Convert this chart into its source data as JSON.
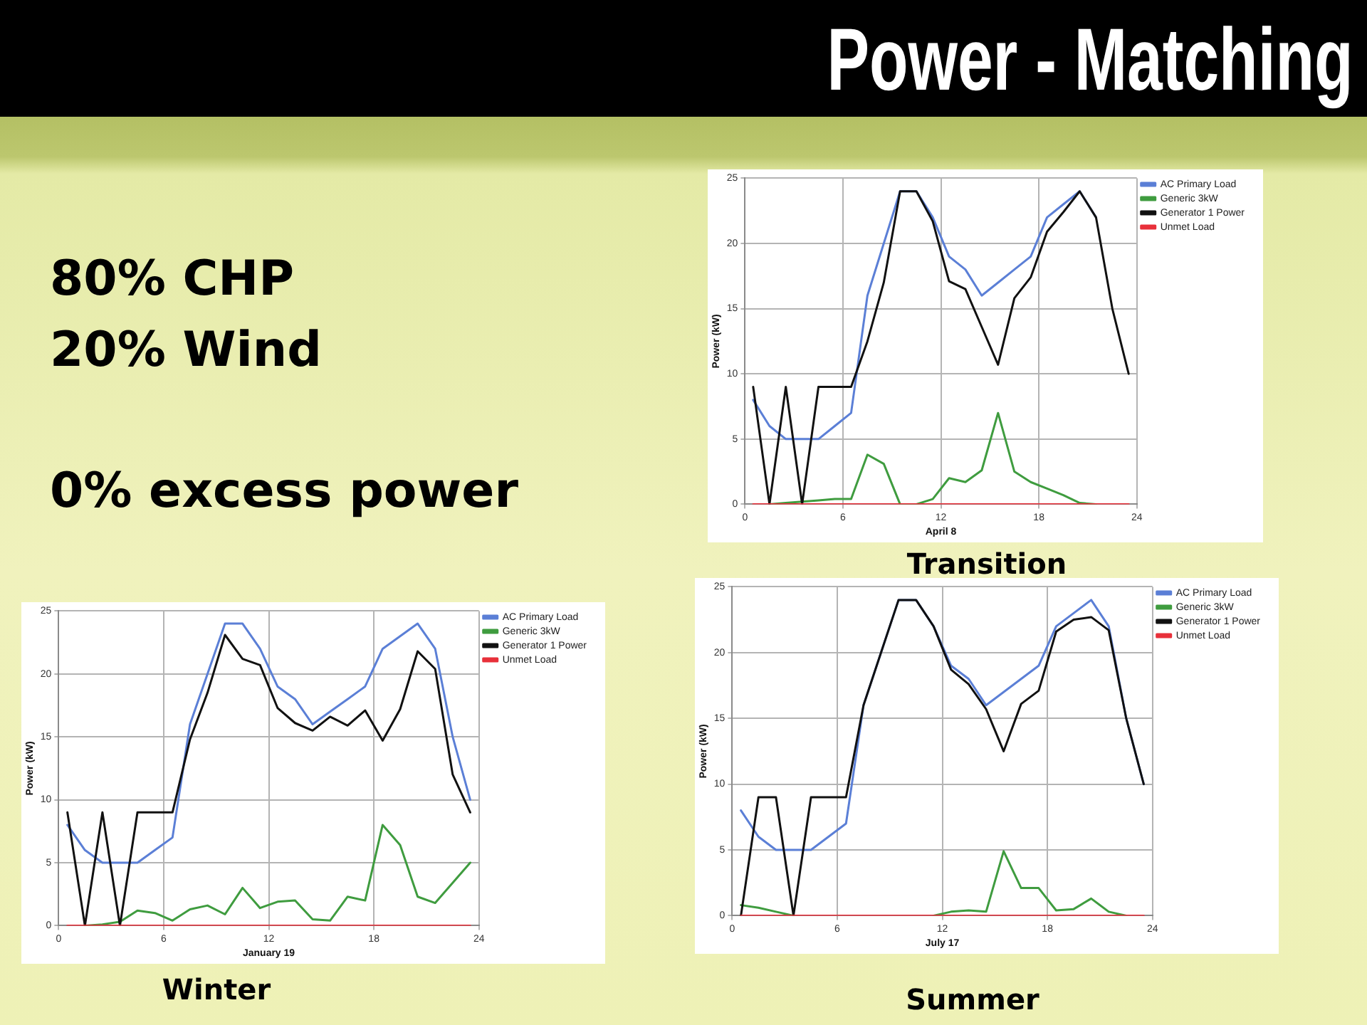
{
  "chart_data": [
    {
      "type": "other",
      "title": "Power - Matching",
      "annotations": [
        "80% CHP",
        "20% Wind",
        "0% excess power"
      ]
    },
    {
      "type": "line",
      "title": "Transition",
      "xlabel": "April 8",
      "ylabel": "Power (kW)",
      "x": [
        0.5,
        1.5,
        2.5,
        3.5,
        4.5,
        5.5,
        6.5,
        7.5,
        8.5,
        9.5,
        10.5,
        11.5,
        12.5,
        13.5,
        14.5,
        15.5,
        16.5,
        17.5,
        18.5,
        19.5,
        20.5,
        21.5,
        22.5,
        23.5
      ],
      "xlim": [
        0,
        24
      ],
      "xticks": [
        0,
        6,
        12,
        18,
        24
      ],
      "ylim": [
        0,
        25
      ],
      "yticks": [
        0,
        5,
        10,
        15,
        20,
        25
      ],
      "grid": true,
      "legend": "top right",
      "series": [
        {
          "name": "AC Primary Load",
          "color": "#5b7fd6",
          "values": [
            8,
            6,
            5,
            5,
            5,
            6,
            7,
            16,
            20,
            24,
            24,
            22,
            19,
            18,
            16,
            17,
            18,
            19,
            22,
            23,
            24,
            22,
            null,
            null
          ]
        },
        {
          "name": "Generic 3kW",
          "color": "#3f9c3f",
          "values": [
            null,
            0,
            0.1,
            0.2,
            0.3,
            0.4,
            0.4,
            3.8,
            3.1,
            0,
            0,
            0.4,
            2,
            1.7,
            2.6,
            7,
            2.5,
            1.7,
            1.2,
            0.7,
            0.1,
            0,
            null,
            null
          ]
        },
        {
          "name": "Generator 1 Power",
          "color": "#111111",
          "values": [
            9,
            0,
            9,
            0,
            9,
            9,
            9,
            12.5,
            17,
            24,
            24,
            21.7,
            17.1,
            16.5,
            13.6,
            10.7,
            15.8,
            17.4,
            20.9,
            22.4,
            24,
            22,
            15,
            10
          ]
        },
        {
          "name": "Unmet Load",
          "color": "#e8303a",
          "values": [
            0,
            0,
            0,
            0,
            0,
            0,
            0,
            0,
            0,
            0,
            0,
            0,
            0,
            0,
            0,
            0,
            0,
            0,
            0,
            0,
            0,
            0,
            0,
            0
          ]
        }
      ]
    },
    {
      "type": "line",
      "title": "Winter",
      "xlabel": "January 19",
      "ylabel": "Power (kW)",
      "x": [
        0.5,
        1.5,
        2.5,
        3.5,
        4.5,
        5.5,
        6.5,
        7.5,
        8.5,
        9.5,
        10.5,
        11.5,
        12.5,
        13.5,
        14.5,
        15.5,
        16.5,
        17.5,
        18.5,
        19.5,
        20.5,
        21.5,
        22.5,
        23.5
      ],
      "xlim": [
        0,
        24
      ],
      "xticks": [
        0,
        6,
        12,
        18,
        24
      ],
      "ylim": [
        0,
        25
      ],
      "yticks": [
        0,
        5,
        10,
        15,
        20,
        25
      ],
      "grid": true,
      "legend": "top right",
      "series": [
        {
          "name": "AC Primary Load",
          "color": "#5b7fd6",
          "values": [
            8,
            6,
            5,
            5,
            5,
            6,
            7,
            16,
            20,
            24,
            24,
            22,
            19,
            18,
            16,
            17,
            18,
            19,
            22,
            23,
            24,
            22,
            15,
            10
          ]
        },
        {
          "name": "Generic 3kW",
          "color": "#3f9c3f",
          "values": [
            null,
            0,
            0.1,
            0.3,
            1.2,
            1,
            0.4,
            1.3,
            1.6,
            0.9,
            3,
            1.4,
            1.9,
            2,
            0.5,
            0.4,
            2.3,
            2,
            8,
            6.4,
            2.3,
            1.8,
            3.4,
            5
          ]
        },
        {
          "name": "Generator 1 Power",
          "color": "#111111",
          "values": [
            9,
            0,
            9,
            0,
            9,
            9,
            9,
            14.8,
            18.5,
            23.1,
            21.2,
            20.7,
            17.3,
            16.1,
            15.5,
            16.6,
            15.9,
            17.1,
            14.7,
            17.2,
            21.8,
            20.4,
            12,
            9
          ]
        },
        {
          "name": "Unmet Load",
          "color": "#e8303a",
          "values": [
            0,
            0,
            0,
            0,
            0,
            0,
            0,
            0,
            0,
            0,
            0,
            0,
            0,
            0,
            0,
            0,
            0,
            0,
            0,
            0,
            0,
            0,
            0,
            0
          ]
        }
      ]
    },
    {
      "type": "line",
      "title": "Summer",
      "xlabel": "July 17",
      "ylabel": "Power (kW)",
      "x": [
        0.5,
        1.5,
        2.5,
        3.5,
        4.5,
        5.5,
        6.5,
        7.5,
        8.5,
        9.5,
        10.5,
        11.5,
        12.5,
        13.5,
        14.5,
        15.5,
        16.5,
        17.5,
        18.5,
        19.5,
        20.5,
        21.5,
        22.5,
        23.5
      ],
      "xlim": [
        0,
        24
      ],
      "xticks": [
        0,
        6,
        12,
        18,
        24
      ],
      "ylim": [
        0,
        25
      ],
      "yticks": [
        0,
        5,
        10,
        15,
        20,
        25
      ],
      "grid": true,
      "legend": "top right",
      "series": [
        {
          "name": "AC Primary Load",
          "color": "#5b7fd6",
          "values": [
            8,
            6,
            5,
            5,
            5,
            6,
            7,
            16,
            20,
            24,
            24,
            22,
            19,
            18,
            16,
            17,
            18,
            19,
            22,
            23,
            24,
            22,
            15,
            10
          ]
        },
        {
          "name": "Generic 3kW",
          "color": "#3f9c3f",
          "values": [
            0.8,
            0.6,
            0.3,
            0,
            null,
            null,
            null,
            null,
            null,
            null,
            null,
            0,
            0.3,
            0.4,
            0.3,
            4.9,
            2.1,
            2.1,
            0.4,
            0.5,
            1.3,
            0.3,
            0,
            null
          ]
        },
        {
          "name": "Generator 1 Power",
          "color": "#111111",
          "values": [
            0,
            9,
            9,
            0,
            9,
            9,
            9,
            16,
            20,
            24,
            24,
            22,
            18.7,
            17.6,
            15.7,
            12.5,
            16.1,
            17.1,
            21.6,
            22.5,
            22.7,
            21.7,
            15,
            10
          ]
        },
        {
          "name": "Unmet Load",
          "color": "#e8303a",
          "values": [
            0,
            0,
            0,
            0,
            0,
            0,
            0,
            0,
            0,
            0,
            0,
            0,
            0,
            0,
            0,
            0,
            0,
            0,
            0,
            0,
            0,
            0,
            0,
            0
          ]
        }
      ]
    }
  ]
}
